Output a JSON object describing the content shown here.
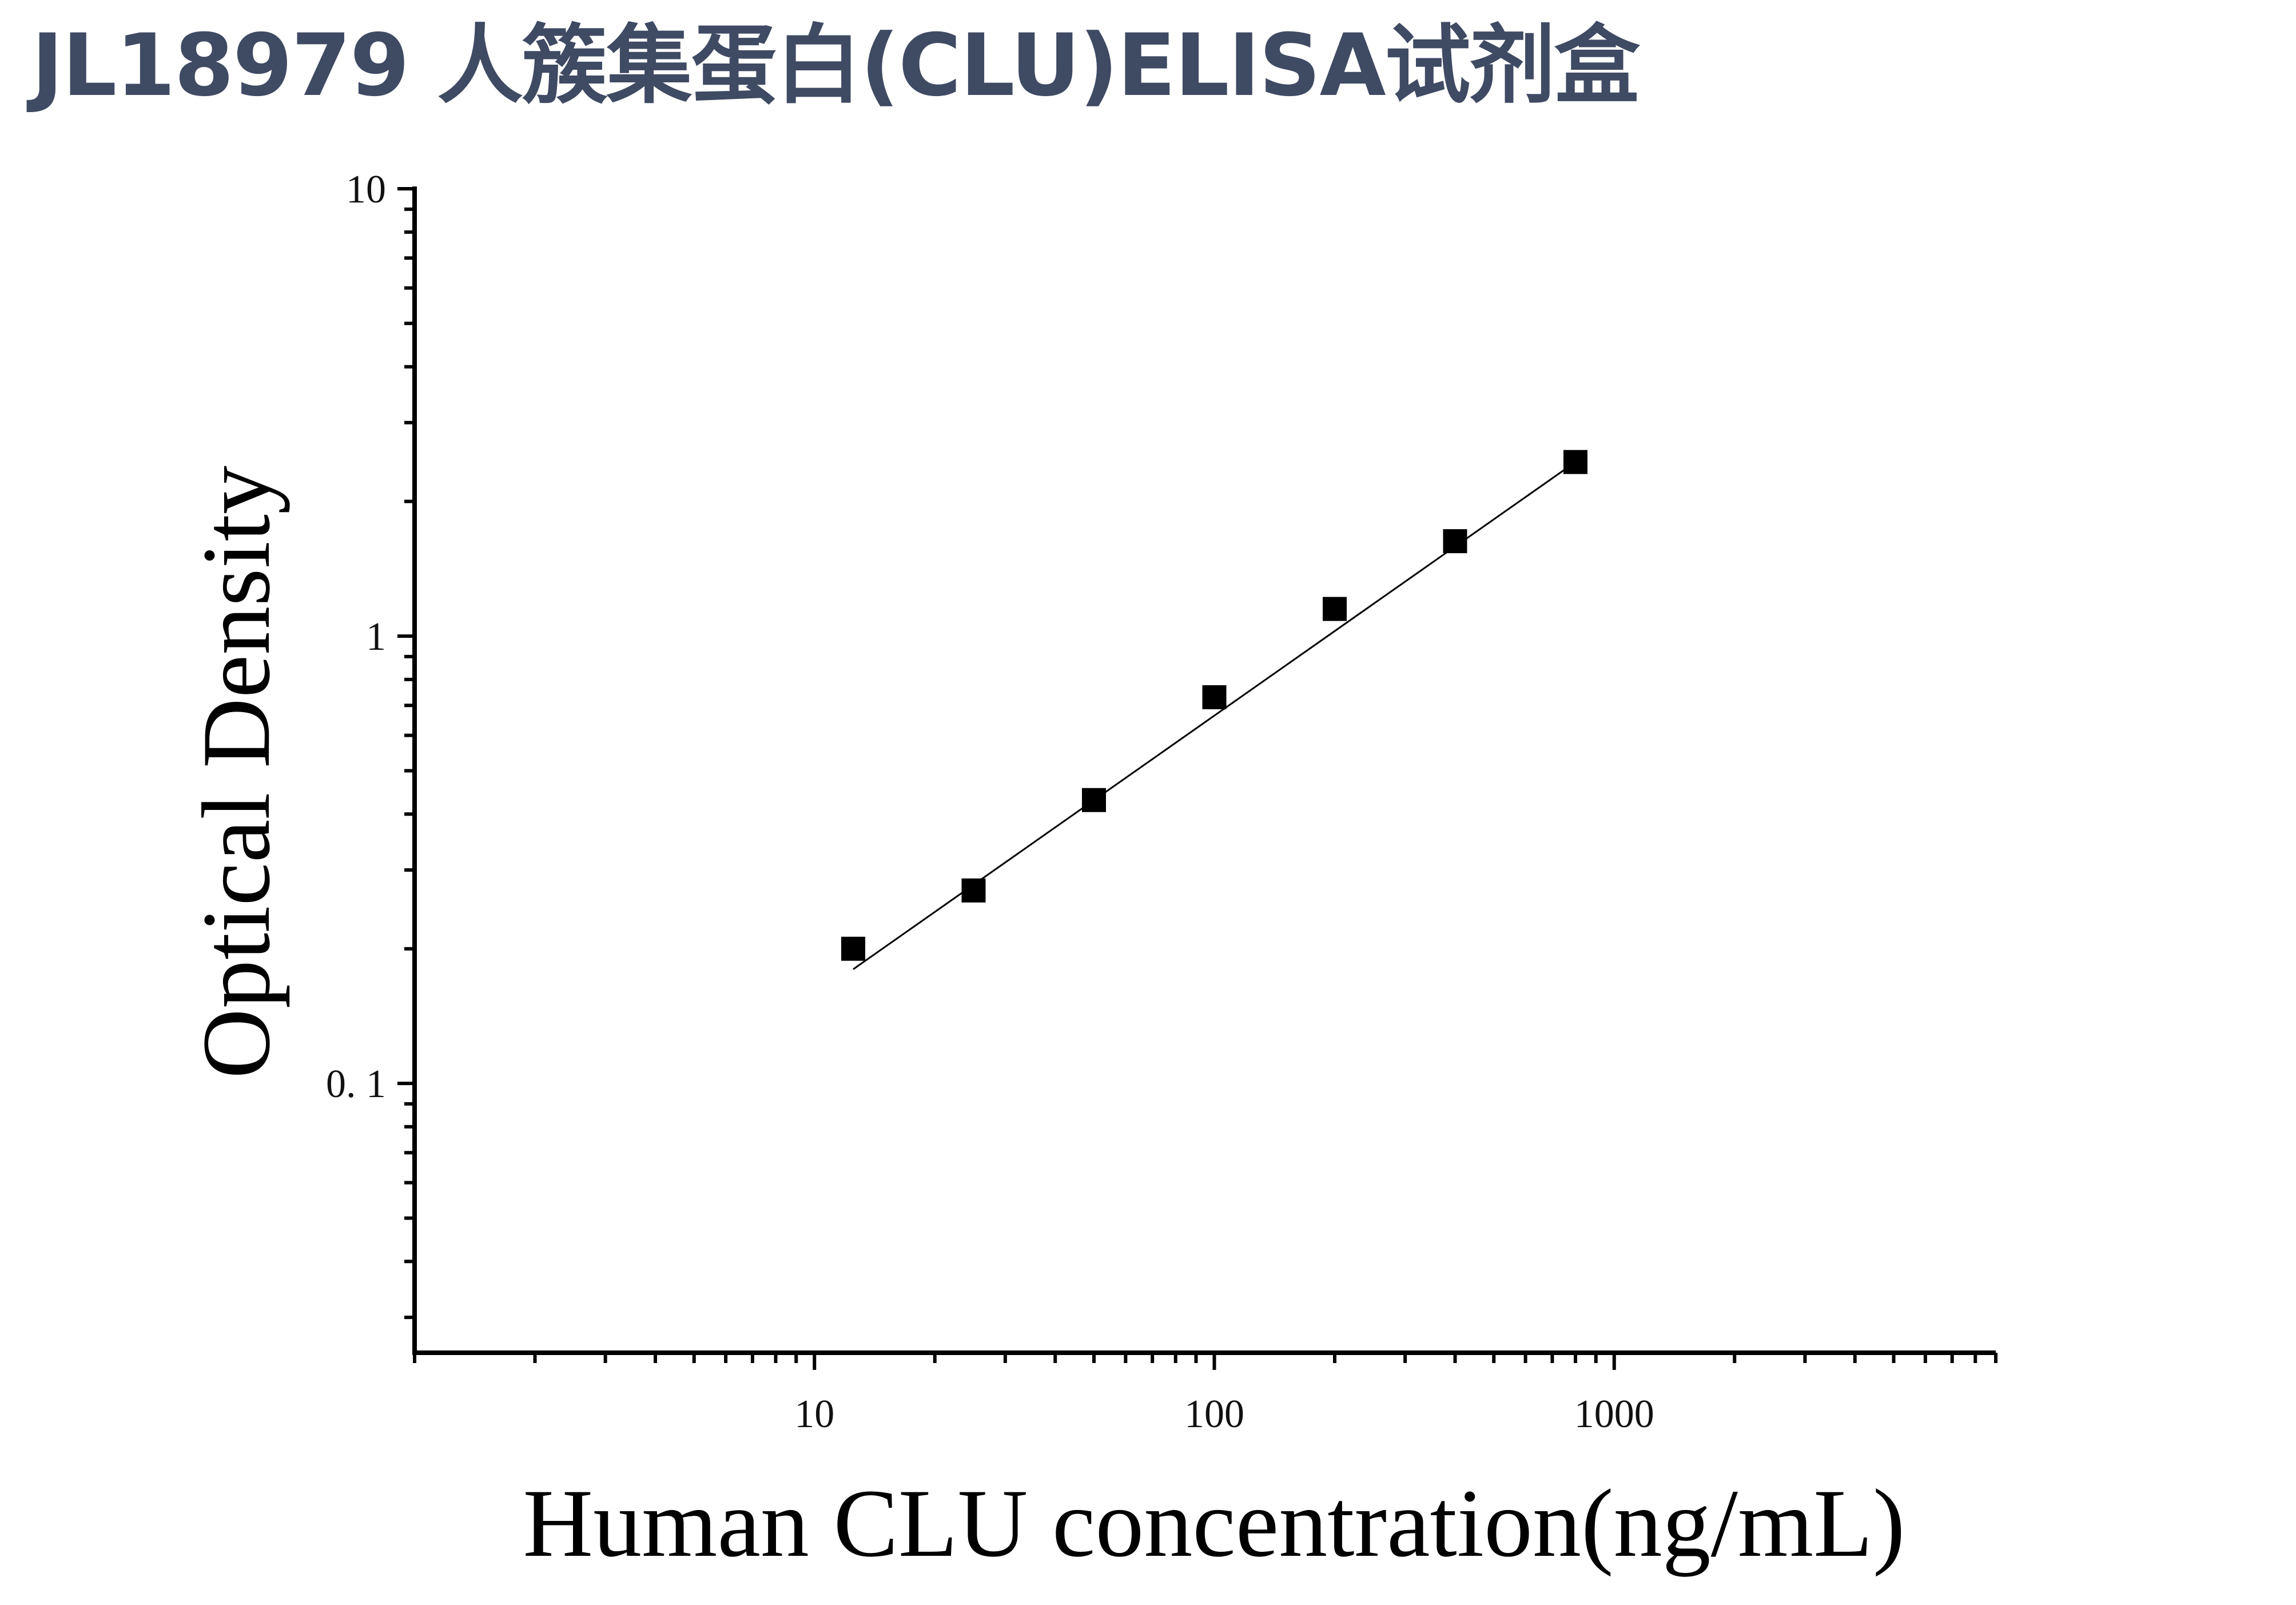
{
  "title": "JL18979 人簇集蛋白(CLU)ELISA试剂盒",
  "chart_data": {
    "type": "scatter",
    "title": "JL18979 人簇集蛋白(CLU)ELISA试剂盒",
    "xlabel": "Human CLU concentration(ng/mL)",
    "ylabel": "Optical Density",
    "x_scale": "log",
    "y_scale": "log",
    "xlim": [
      1,
      9000
    ],
    "ylim": [
      0.025,
      10
    ],
    "x_ticks": [
      10,
      100,
      1000
    ],
    "x_tick_labels": [
      "10",
      "100",
      "1000"
    ],
    "y_ticks": [
      0.1,
      1,
      10
    ],
    "y_tick_labels": [
      "0. 1",
      "1",
      "10"
    ],
    "grid": false,
    "marker": "square",
    "series": [
      {
        "x": [
          12.5,
          25,
          50,
          100,
          200,
          400,
          800
        ],
        "y": [
          0.2,
          0.27,
          0.43,
          0.73,
          1.15,
          1.63,
          2.45
        ]
      }
    ],
    "fit_line": {
      "x": [
        12.5,
        800
      ],
      "y": [
        0.18,
        2.45
      ]
    },
    "colors": {
      "marker": "#000000",
      "line": "#000000",
      "axis": "#000000",
      "title": "#3f4a63"
    }
  }
}
